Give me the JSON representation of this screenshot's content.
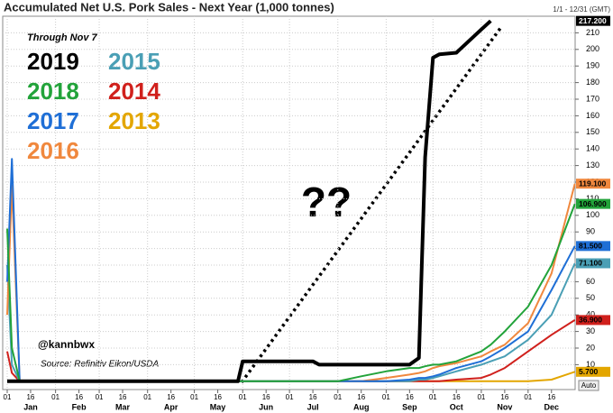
{
  "chart_data": {
    "type": "line",
    "title": "Accumulated Net U.S. Pork Sales - Next Year (1,000 tonnes)",
    "range_label": "1/1 - 12/31 (GMT)",
    "subtitle": "Through Nov 7",
    "annotation": "??",
    "handle": "@kannbwx",
    "source": "Source: Refinitiv Eikon/USDA",
    "scale_mode": "Auto",
    "months": [
      "Jan",
      "Feb",
      "Mar",
      "Apr",
      "May",
      "Jun",
      "Jul",
      "Aug",
      "Sep",
      "Oct",
      "Nov",
      "Dec"
    ],
    "x": [
      "Jan 01",
      "Jan 04",
      "Jan 09",
      "Feb 01",
      "Mar 01",
      "Apr 01",
      "May 01",
      "May 29",
      "Jun 01",
      "Jul 01",
      "Jul 16",
      "Jul 20",
      "Aug 01",
      "Aug 16",
      "Sep 01",
      "Sep 16",
      "Sep 22",
      "Sep 26",
      "Oct 01",
      "Oct 05",
      "Oct 16",
      "Nov 01",
      "Nov 07",
      "Nov 16",
      "Dec 01",
      "Dec 16",
      "Dec 31"
    ],
    "xticks": [
      {
        "value": "Jan 01",
        "label": "01"
      },
      {
        "value": "Jan 16",
        "label": "16"
      },
      {
        "value": "Feb 01",
        "label": "01"
      },
      {
        "value": "Feb 16",
        "label": "16"
      },
      {
        "value": "Mar 01",
        "label": "01"
      },
      {
        "value": "Mar 16",
        "label": "16"
      },
      {
        "value": "Apr 01",
        "label": "01"
      },
      {
        "value": "Apr 16",
        "label": "16"
      },
      {
        "value": "May 01",
        "label": "01"
      },
      {
        "value": "May 16",
        "label": "16"
      },
      {
        "value": "Jun 01",
        "label": "01"
      },
      {
        "value": "Jun 16",
        "label": "16"
      },
      {
        "value": "Jul 01",
        "label": "01"
      },
      {
        "value": "Jul 16",
        "label": "16"
      },
      {
        "value": "Aug 01",
        "label": "01"
      },
      {
        "value": "Aug 16",
        "label": "16"
      },
      {
        "value": "Sep 01",
        "label": "01"
      },
      {
        "value": "Sep 16",
        "label": "16"
      },
      {
        "value": "Oct 01",
        "label": "01"
      },
      {
        "value": "Oct 16",
        "label": "16"
      },
      {
        "value": "Nov 01",
        "label": "01"
      },
      {
        "value": "Nov 16",
        "label": "16"
      },
      {
        "value": "Dec 01",
        "label": "01"
      },
      {
        "value": "Dec 16",
        "label": "16"
      }
    ],
    "ylim": [
      -5,
      220
    ],
    "yticks": [
      10,
      20,
      30,
      40,
      50,
      60,
      70,
      80,
      90,
      100,
      110,
      120,
      130,
      140,
      150,
      160,
      170,
      180,
      190,
      200,
      210
    ],
    "grid": true,
    "series": [
      {
        "name": "2019",
        "color": "#000000",
        "values": [
          0,
          0,
          0,
          0,
          0,
          0,
          0,
          0,
          12,
          12,
          12,
          10,
          10,
          10,
          10,
          10,
          14,
          135,
          195,
          197,
          198,
          212,
          217.2,
          null,
          null,
          null,
          null
        ],
        "value_labels": [
          null,
          null,
          null,
          null,
          null,
          null,
          null,
          null,
          null,
          null,
          null,
          null,
          null,
          null,
          null,
          null,
          null,
          null,
          null,
          null,
          null,
          null,
          "217.200",
          null,
          null,
          null,
          null
        ]
      },
      {
        "name": "2018",
        "color": "#22a33a",
        "values": [
          92,
          20,
          0,
          0,
          0,
          0,
          0,
          0,
          0,
          0,
          0,
          0,
          0,
          3,
          6,
          8,
          8,
          9,
          10,
          10,
          12,
          18,
          22,
          30,
          45,
          70,
          106.9
        ],
        "value_labels": [
          null,
          null,
          null,
          null,
          null,
          null,
          null,
          null,
          null,
          null,
          null,
          null,
          null,
          null,
          null,
          null,
          null,
          null,
          null,
          null,
          null,
          null,
          null,
          null,
          null,
          null,
          "106.900"
        ]
      },
      {
        "name": "2017",
        "color": "#1f6fd6",
        "values": [
          60,
          134,
          0,
          0,
          0,
          0,
          0,
          0,
          0,
          0,
          0,
          0,
          0,
          0,
          0,
          1,
          2,
          2,
          3,
          4,
          8,
          12,
          15,
          20,
          30,
          55,
          81.5
        ],
        "value_labels": [
          null,
          null,
          null,
          null,
          null,
          null,
          null,
          null,
          null,
          null,
          null,
          null,
          null,
          null,
          null,
          null,
          null,
          null,
          null,
          null,
          null,
          null,
          null,
          null,
          null,
          null,
          "81.500"
        ]
      },
      {
        "name": "2016",
        "color": "#f0883e",
        "values": [
          40,
          118,
          0,
          0,
          0,
          0,
          0,
          0,
          0,
          0,
          0,
          0,
          0,
          0,
          2,
          4,
          5,
          6,
          8,
          9,
          11,
          15,
          18,
          22,
          35,
          65,
          119.1
        ],
        "value_labels": [
          null,
          null,
          null,
          null,
          null,
          null,
          null,
          null,
          null,
          null,
          null,
          null,
          null,
          null,
          null,
          null,
          null,
          null,
          null,
          null,
          null,
          null,
          null,
          null,
          null,
          null,
          "119.100"
        ]
      },
      {
        "name": "2015",
        "color": "#4a9fb5",
        "values": [
          70,
          10,
          0,
          0,
          0,
          0,
          0,
          0,
          0,
          0,
          0,
          0,
          0,
          0,
          0,
          0,
          1,
          1,
          2,
          3,
          6,
          10,
          12,
          15,
          25,
          40,
          71.1
        ],
        "value_labels": [
          null,
          null,
          null,
          null,
          null,
          null,
          null,
          null,
          null,
          null,
          null,
          null,
          null,
          null,
          null,
          null,
          null,
          null,
          null,
          null,
          null,
          null,
          null,
          null,
          null,
          null,
          "71.100"
        ]
      },
      {
        "name": "2014",
        "color": "#d0201c",
        "values": [
          18,
          5,
          0,
          0,
          0,
          0,
          0,
          0,
          0,
          0,
          0,
          0,
          0,
          0,
          0,
          0,
          0,
          0,
          0,
          0,
          1,
          2,
          4,
          8,
          18,
          28,
          36.9
        ],
        "value_labels": [
          null,
          null,
          null,
          null,
          null,
          null,
          null,
          null,
          null,
          null,
          null,
          null,
          null,
          null,
          null,
          null,
          null,
          null,
          null,
          null,
          null,
          null,
          null,
          null,
          null,
          null,
          "36.900"
        ]
      },
      {
        "name": "2013",
        "color": "#e3a600",
        "values": [
          0,
          0,
          0,
          0,
          0,
          0,
          0,
          0,
          0,
          0,
          0,
          0,
          0,
          0,
          0,
          0,
          0,
          0,
          0,
          0,
          0,
          0,
          0,
          0,
          0,
          1,
          5.7
        ],
        "value_labels": [
          null,
          null,
          null,
          null,
          null,
          null,
          null,
          null,
          null,
          null,
          null,
          null,
          null,
          null,
          null,
          null,
          null,
          null,
          null,
          null,
          null,
          null,
          null,
          null,
          null,
          null,
          "5.700"
        ]
      }
    ]
  }
}
